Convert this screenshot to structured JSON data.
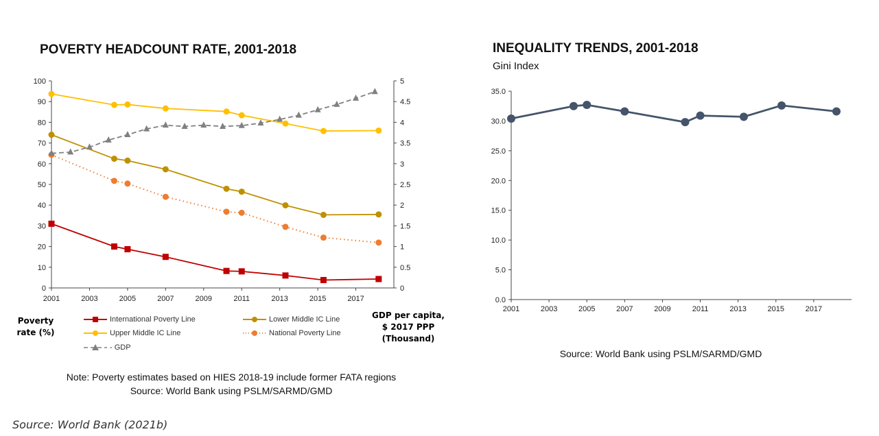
{
  "chart_data": [
    {
      "type": "line",
      "title": "POVERTY HEADCOUNT RATE, 2001-2018",
      "ylabel": "Poverty rate (%)",
      "y2label": "GDP per capita, $ 2017 PPP (Thousand)",
      "ylim": [
        0,
        100
      ],
      "y2lim": [
        0,
        5
      ],
      "xlim": [
        2001,
        2019
      ],
      "xticks": [
        "2001",
        "2003",
        "2005",
        "2007",
        "2009",
        "2011",
        "2013",
        "2015",
        "2017"
      ],
      "yticks": [
        "0",
        "10",
        "20",
        "30",
        "40",
        "50",
        "60",
        "70",
        "80",
        "90",
        "100"
      ],
      "y2ticks": [
        "0",
        "0.5",
        "1",
        "1.5",
        "2",
        "2.5",
        "3",
        "3.5",
        "4",
        "4.5",
        "5"
      ],
      "series": [
        {
          "name": "International Poverty Line",
          "axis": "left",
          "color": "#c00000",
          "marker": "square",
          "style": "solid",
          "x": [
            2001,
            2004.3,
            2005,
            2007,
            2010.2,
            2011,
            2013.3,
            2015.3,
            2018.2
          ],
          "values": [
            31,
            20,
            18.7,
            15,
            8.2,
            8,
            6,
            3.8,
            4.3
          ]
        },
        {
          "name": "Lower Middle IC Line",
          "axis": "left",
          "color": "#bf9000",
          "marker": "circle",
          "style": "solid",
          "x": [
            2001,
            2004.3,
            2005,
            2007,
            2010.2,
            2011,
            2013.3,
            2015.3,
            2018.2
          ],
          "values": [
            74,
            62.4,
            61.5,
            57.3,
            47.9,
            46.5,
            39.9,
            35.3,
            35.5
          ]
        },
        {
          "name": "Upper Middle IC Line",
          "axis": "left",
          "color": "#ffc000",
          "marker": "circle",
          "style": "solid",
          "x": [
            2001,
            2004.3,
            2005,
            2007,
            2010.2,
            2011,
            2013.3,
            2015.3,
            2018.2
          ],
          "values": [
            93.7,
            88.4,
            88.6,
            86.7,
            85.2,
            83.4,
            79.4,
            75.8,
            76
          ]
        },
        {
          "name": "National Poverty Line",
          "axis": "left",
          "color": "#ed7d31",
          "marker": "circle",
          "style": "dotted",
          "x": [
            2001,
            2004.3,
            2005,
            2007,
            2010.2,
            2011,
            2013.3,
            2015.3,
            2018.2
          ],
          "values": [
            64.3,
            51.7,
            50.4,
            44,
            36.8,
            36.3,
            29.5,
            24.3,
            21.9
          ]
        },
        {
          "name": "GDP",
          "axis": "right",
          "color": "#808080",
          "marker": "triangle",
          "style": "dashed",
          "x": [
            2001,
            2002,
            2003,
            2004,
            2005,
            2006,
            2007,
            2008,
            2009,
            2010,
            2011,
            2012,
            2013,
            2014,
            2015,
            2016,
            2017,
            2018
          ],
          "values": [
            3.25,
            3.28,
            3.4,
            3.57,
            3.7,
            3.84,
            3.93,
            3.9,
            3.93,
            3.9,
            3.92,
            3.98,
            4.07,
            4.17,
            4.3,
            4.43,
            4.58,
            4.74
          ]
        }
      ]
    },
    {
      "type": "line",
      "title": "INEQUALITY TRENDS, 2001-2018",
      "subtitle": "Gini Index",
      "ylim": [
        0,
        35
      ],
      "xlim": [
        2001,
        2019
      ],
      "xticks": [
        "2001",
        "2003",
        "2005",
        "2007",
        "2009",
        "2011",
        "2013",
        "2015",
        "2017"
      ],
      "yticks": [
        "0.0",
        "5.0",
        "10.0",
        "15.0",
        "20.0",
        "25.0",
        "30.0",
        "35.0"
      ],
      "series": [
        {
          "name": "Gini Index",
          "color": "#44546a",
          "marker": "circle",
          "style": "solid",
          "x": [
            2001,
            2004.3,
            2005,
            2007,
            2010.2,
            2011,
            2013.3,
            2015.3,
            2018.2
          ],
          "values": [
            30.4,
            32.5,
            32.7,
            31.6,
            29.8,
            30.9,
            30.7,
            32.6,
            31.6
          ]
        }
      ]
    }
  ],
  "left_panel": {
    "y_axis_note": "Poverty rate (%)",
    "y2_axis_note": "GDP per capita, $ 2017 PPP (Thousand)",
    "legend": {
      "international": "International Poverty Line",
      "lower_middle": "Lower Middle IC Line",
      "upper_middle": "Upper Middle IC Line",
      "national": "National Poverty Line",
      "gdp": "- GDP"
    },
    "note": "Note: Poverty estimates based on HIES 2018-19 include former FATA regions",
    "source": "Source: World Bank using PSLM/SARMD/GMD"
  },
  "right_panel": {
    "source": "Source: World Bank using PSLM/SARMD/GMD"
  },
  "figure_source": "Source: World Bank (2021b)"
}
